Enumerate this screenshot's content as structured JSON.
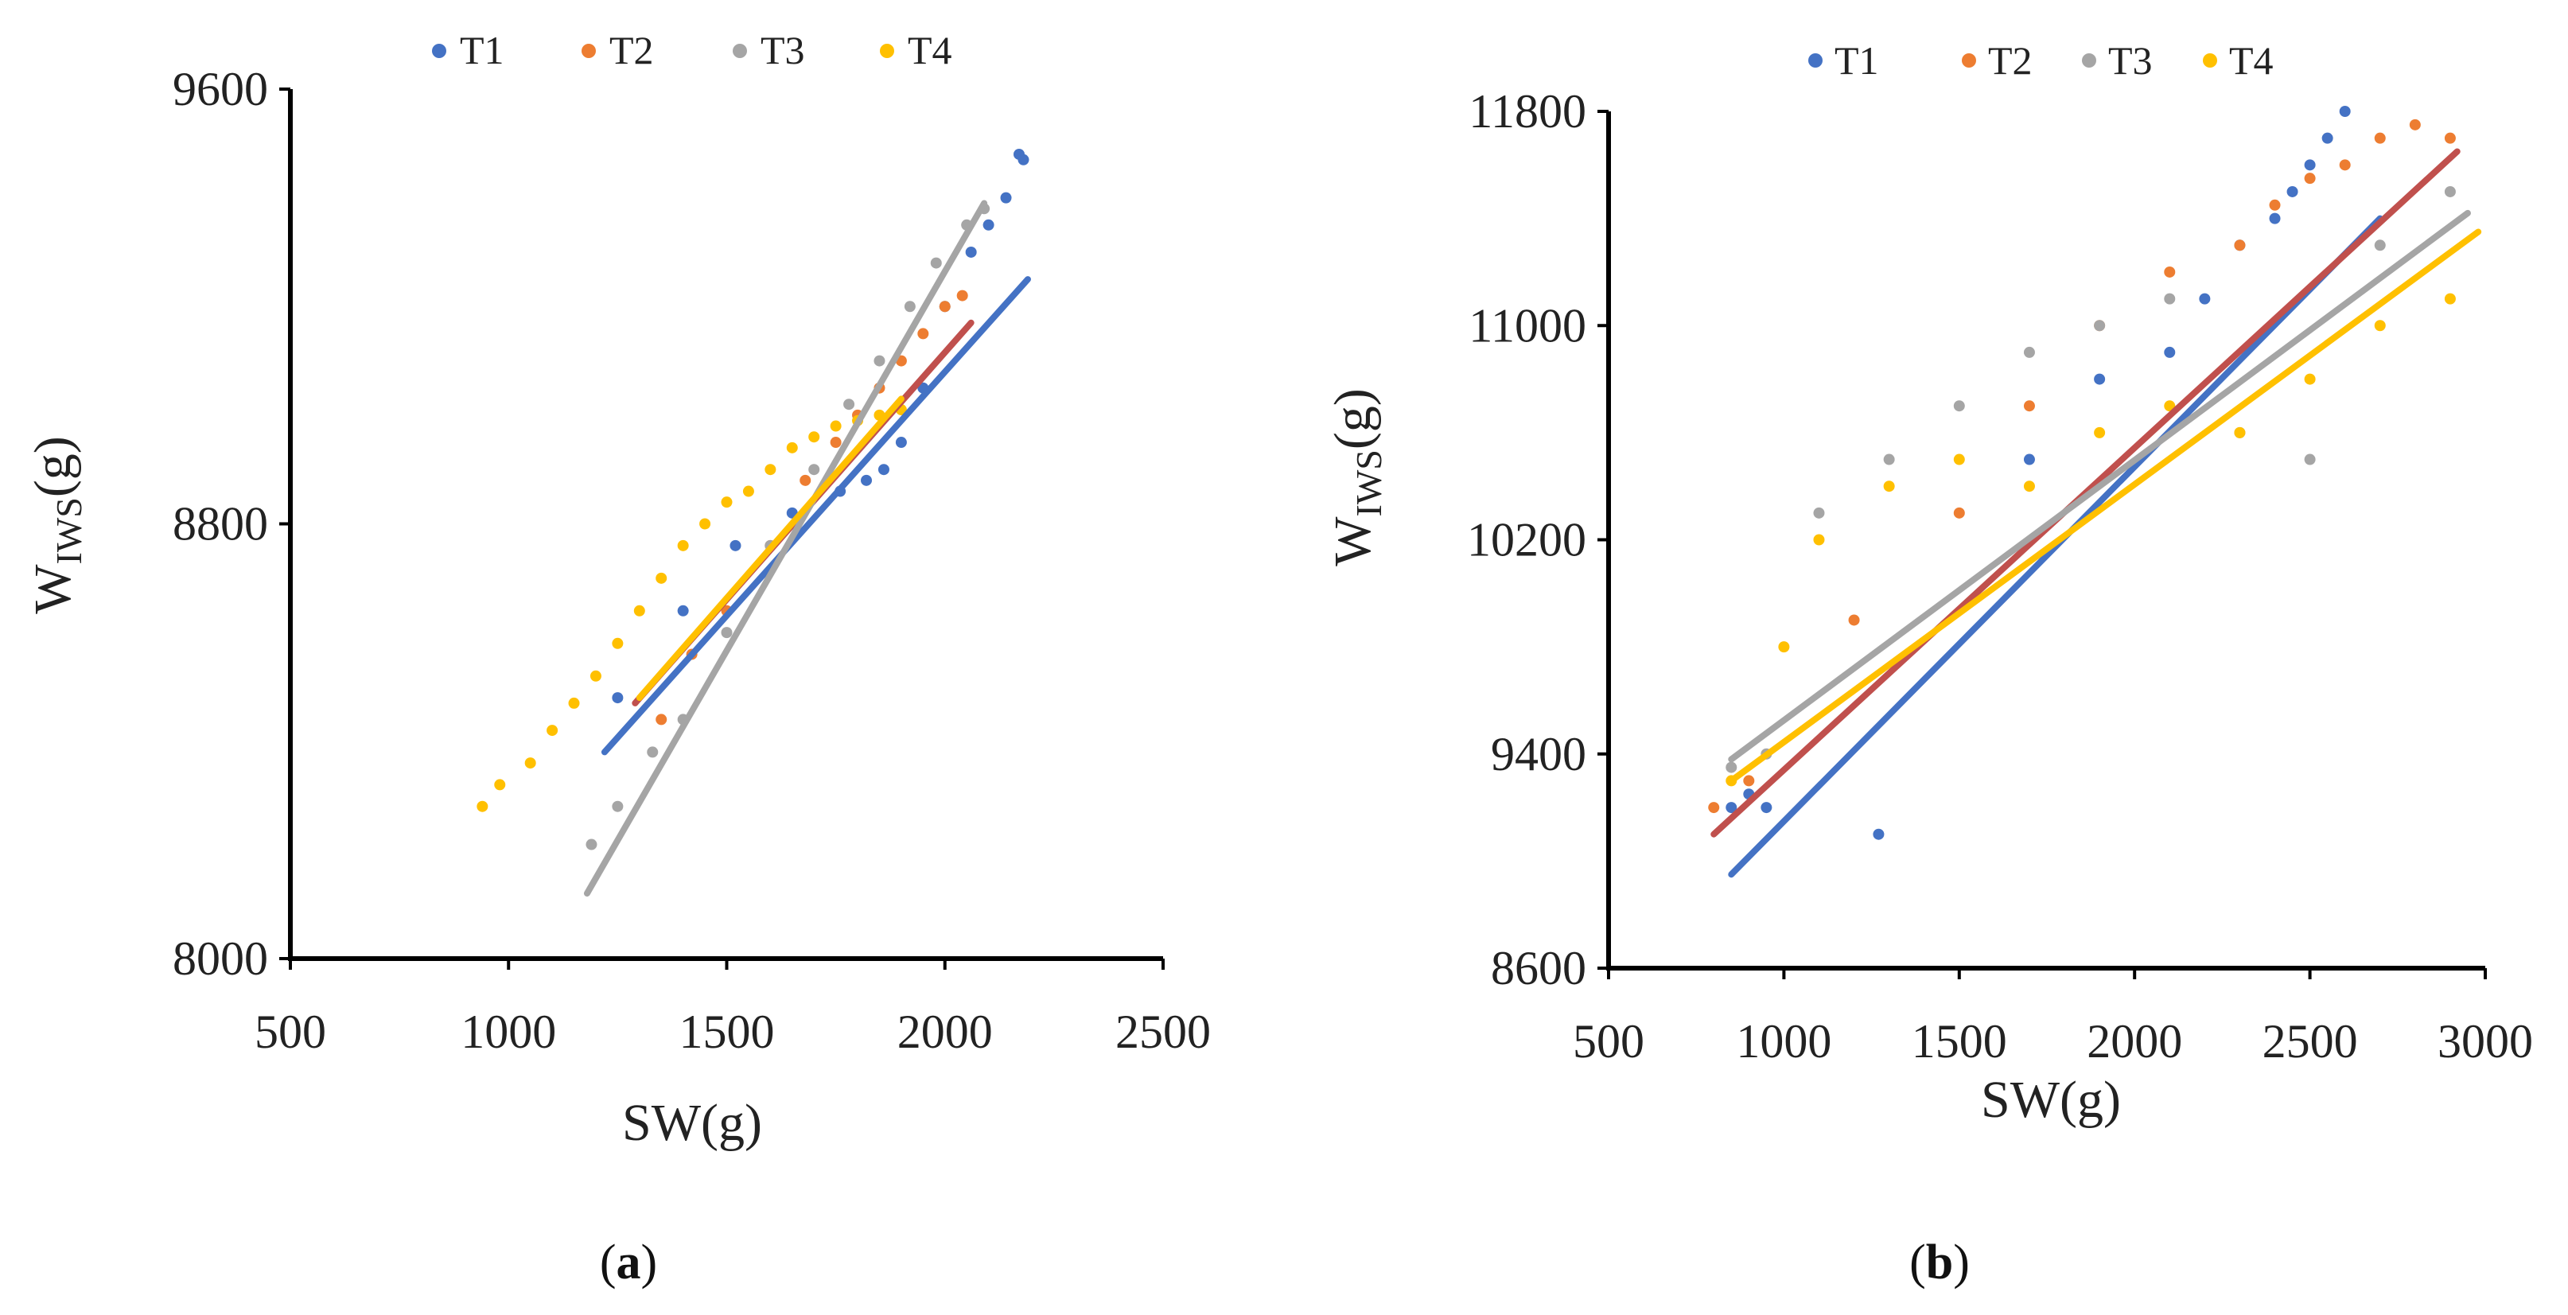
{
  "chart_data": [
    {
      "type": "scatter",
      "panel_label": "a",
      "xlabel": "SW(g)",
      "ylabel_main": "W",
      "ylabel_sub": "IWS",
      "ylabel_unit": "(g)",
      "xlim": [
        500,
        2500
      ],
      "ylim": [
        8000,
        9600
      ],
      "xticks": [
        500,
        1000,
        1500,
        2000,
        2500
      ],
      "yticks": [
        8000,
        8800,
        9600
      ],
      "legend": [
        "T1",
        "T2",
        "T3",
        "T4"
      ],
      "series": [
        {
          "name": "T1",
          "color": "#4472c4",
          "line_color": "#4472c4",
          "x": [
            1250,
            1400,
            1520,
            1650,
            1760,
            1820,
            1860,
            1900,
            1950,
            2000,
            2060,
            2100,
            2140,
            2170,
            2180
          ],
          "y": [
            8480,
            8640,
            8760,
            8820,
            8860,
            8880,
            8900,
            8950,
            9050,
            9200,
            9300,
            9350,
            9400,
            9480,
            9470
          ],
          "fit": [
            [
              1220,
              8380
            ],
            [
              2190,
              9250
            ]
          ]
        },
        {
          "name": "T2",
          "color": "#ed7d31",
          "line_color": "#c0504d",
          "x": [
            1350,
            1420,
            1500,
            1600,
            1680,
            1750,
            1800,
            1850,
            1900,
            1950,
            2000,
            2040
          ],
          "y": [
            8440,
            8560,
            8640,
            8760,
            8880,
            8950,
            9000,
            9050,
            9100,
            9150,
            9200,
            9220
          ],
          "fit": [
            [
              1290,
              8470
            ],
            [
              2060,
              9170
            ]
          ]
        },
        {
          "name": "T3",
          "color": "#a5a5a5",
          "line_color": "#a5a5a5",
          "x": [
            1190,
            1250,
            1330,
            1400,
            1500,
            1600,
            1700,
            1780,
            1850,
            1920,
            1980,
            2050,
            2090
          ],
          "y": [
            8210,
            8280,
            8380,
            8440,
            8600,
            8760,
            8900,
            9020,
            9100,
            9200,
            9280,
            9350,
            9380
          ],
          "fit": [
            [
              1180,
              8120
            ],
            [
              2090,
              9390
            ]
          ]
        },
        {
          "name": "T4",
          "color": "#ffc000",
          "line_color": "#ffc000",
          "x": [
            940,
            980,
            1050,
            1100,
            1150,
            1200,
            1250,
            1300,
            1350,
            1400,
            1450,
            1500,
            1550,
            1600,
            1650,
            1700,
            1750,
            1800,
            1850,
            1900
          ],
          "y": [
            8280,
            8320,
            8360,
            8420,
            8470,
            8520,
            8580,
            8640,
            8700,
            8760,
            8800,
            8840,
            8860,
            8900,
            8940,
            8960,
            8980,
            8990,
            9000,
            9010
          ],
          "fit": [
            [
              1300,
              8480
            ],
            [
              1900,
              9030
            ]
          ]
        }
      ]
    },
    {
      "type": "scatter",
      "panel_label": "b",
      "xlabel": "SW(g)",
      "ylabel_main": "W",
      "ylabel_sub": "IWS",
      "ylabel_unit": "(g)",
      "xlim": [
        500,
        3000
      ],
      "ylim": [
        8600,
        11800
      ],
      "xticks": [
        500,
        1000,
        1500,
        2000,
        2500,
        3000
      ],
      "yticks": [
        8600,
        9400,
        10200,
        11000,
        11800
      ],
      "legend": [
        "T1",
        "T2",
        "T3",
        "T4"
      ],
      "series": [
        {
          "name": "T1",
          "color": "#4472c4",
          "line_color": "#4472c4",
          "x": [
            850,
            900,
            950,
            1270,
            1700,
            1900,
            2100,
            2200,
            2300,
            2400,
            2450,
            2500,
            2550,
            2600
          ],
          "y": [
            9200,
            9250,
            9200,
            9100,
            10500,
            10800,
            10900,
            11100,
            11300,
            11400,
            11500,
            11600,
            11700,
            11800
          ],
          "fit": [
            [
              850,
              8950
            ],
            [
              2700,
              11400
            ]
          ]
        },
        {
          "name": "T2",
          "color": "#ed7d31",
          "line_color": "#c0504d",
          "x": [
            800,
            900,
            1200,
            1500,
            1700,
            1900,
            2100,
            2300,
            2400,
            2500,
            2600,
            2700,
            2800,
            2900
          ],
          "y": [
            9200,
            9300,
            9900,
            10300,
            10700,
            11000,
            11200,
            11300,
            11450,
            11550,
            11600,
            11700,
            11750,
            11700
          ],
          "fit": [
            [
              800,
              9100
            ],
            [
              2920,
              11650
            ]
          ]
        },
        {
          "name": "T3",
          "color": "#a5a5a5",
          "line_color": "#a5a5a5",
          "x": [
            850,
            950,
            1100,
            1300,
            1500,
            1700,
            1900,
            2100,
            2300,
            2500,
            2700,
            2900
          ],
          "y": [
            9350,
            9400,
            10300,
            10500,
            10700,
            10900,
            11000,
            11100,
            10600,
            10500,
            11300,
            11500
          ],
          "fit": [
            [
              850,
              9380
            ],
            [
              2950,
              11420
            ]
          ]
        },
        {
          "name": "T4",
          "color": "#ffc000",
          "line_color": "#ffc000",
          "x": [
            850,
            1000,
            1100,
            1300,
            1500,
            1700,
            1900,
            2100,
            2300,
            2500,
            2700,
            2900
          ],
          "y": [
            9300,
            9800,
            10200,
            10400,
            10500,
            10400,
            10600,
            10700,
            10600,
            10800,
            11000,
            11100
          ],
          "fit": [
            [
              850,
              9300
            ],
            [
              2980,
              11350
            ]
          ]
        }
      ]
    }
  ]
}
